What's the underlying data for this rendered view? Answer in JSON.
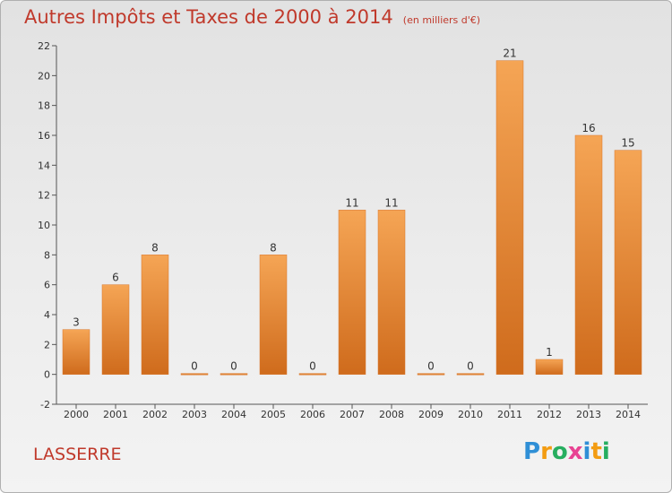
{
  "chart_data": {
    "type": "bar",
    "title": "Autres Impôts et Taxes de 2000 à 2014",
    "subtitle": "(en milliers d'€)",
    "categories": [
      "2000",
      "2001",
      "2002",
      "2003",
      "2004",
      "2005",
      "2006",
      "2007",
      "2008",
      "2009",
      "2010",
      "2011",
      "2012",
      "2013",
      "2014"
    ],
    "values": [
      3,
      6,
      8,
      0,
      0,
      8,
      0,
      11,
      11,
      0,
      0,
      21,
      1,
      16,
      15
    ],
    "data_labels": [
      "3",
      "6",
      "8",
      "0",
      "0",
      "8",
      "0",
      "11",
      "11",
      "0",
      "0",
      "21",
      "1",
      "16",
      "15"
    ],
    "yticks": [
      "-2",
      "0",
      "2",
      "4",
      "6",
      "8",
      "10",
      "12",
      "14",
      "16",
      "18",
      "20",
      "22"
    ],
    "ylim": [
      -2,
      22
    ],
    "xlabel": "",
    "ylabel": "",
    "grid": false,
    "bar_color": "#e8863a"
  },
  "footer": {
    "commune": "LASSERRE",
    "logo_letters": [
      {
        "ch": "P",
        "color": "#2f8fd6"
      },
      {
        "ch": "r",
        "color": "#f39c12"
      },
      {
        "ch": "o",
        "color": "#27ae60"
      },
      {
        "ch": "x",
        "color": "#e84393"
      },
      {
        "ch": "i",
        "color": "#2f8fd6"
      },
      {
        "ch": "t",
        "color": "#f39c12"
      },
      {
        "ch": "i",
        "color": "#27ae60"
      }
    ]
  }
}
